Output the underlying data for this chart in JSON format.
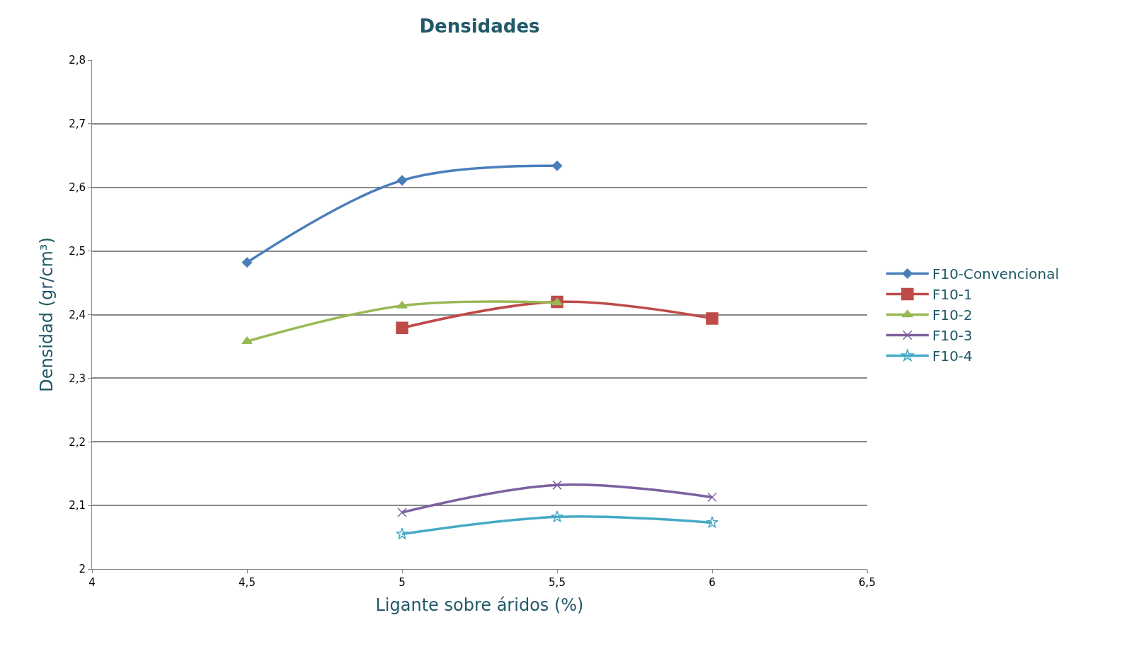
{
  "chart_data": {
    "type": "line",
    "title": "Densidades",
    "xlabel": "Ligante sobre áridos (%)",
    "ylabel": "Densidad (gr/cm³)",
    "xlim": [
      4,
      6.5
    ],
    "xticks": [
      4,
      {
        "value": 4.5,
        "label": "4,5"
      },
      5,
      {
        "value": 5.5,
        "label": "5,5"
      },
      6,
      {
        "value": 6.5,
        "label": "6,5"
      }
    ],
    "ylim": [
      2,
      2.8
    ],
    "yticks": [
      2,
      {
        "value": 2.1,
        "label": "2,1"
      },
      {
        "value": 2.2,
        "label": "2,2"
      },
      {
        "value": 2.3,
        "label": "2,3"
      },
      {
        "value": 2.4,
        "label": "2,4"
      },
      {
        "value": 2.5,
        "label": "2,5"
      },
      {
        "value": 2.6,
        "label": "2,6"
      },
      {
        "value": 2.7,
        "label": "2,7"
      },
      {
        "value": 2.8,
        "label": "2,8"
      }
    ],
    "grid": "y",
    "legend": "right",
    "series": [
      {
        "name": "F10-Convencional",
        "color": "#4a7ebb",
        "marker": "diamond",
        "x": [
          4.5,
          5,
          5.5
        ],
        "values": [
          2.482,
          2.611,
          2.634
        ]
      },
      {
        "name": "F10-1",
        "color": "#be4b48",
        "marker": "square",
        "x": [
          5,
          5.5,
          6
        ],
        "values": [
          2.379,
          2.42,
          2.394
        ]
      },
      {
        "name": "F10-2",
        "color": "#98b954",
        "marker": "triangle",
        "x": [
          4.5,
          5,
          5.5
        ],
        "values": [
          2.358,
          2.414,
          2.419
        ]
      },
      {
        "name": "F10-3",
        "color": "#7d60a0",
        "marker": "cross",
        "x": [
          5,
          5.5,
          6
        ],
        "values": [
          2.089,
          2.132,
          2.113
        ]
      },
      {
        "name": "F10-4",
        "color": "#46aac5",
        "marker": "star",
        "x": [
          5,
          5.5,
          6
        ],
        "values": [
          2.055,
          2.082,
          2.073
        ]
      }
    ]
  }
}
